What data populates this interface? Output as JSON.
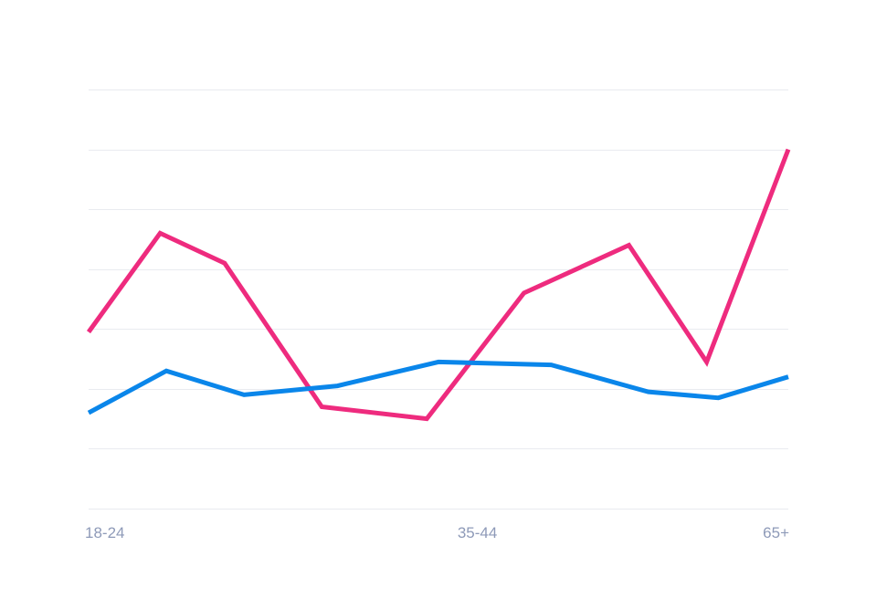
{
  "chart_data": {
    "type": "line",
    "x": [
      0,
      1,
      2,
      3,
      4,
      5,
      6,
      7,
      8,
      9
    ],
    "x_tick_labels": [
      {
        "x": 0,
        "label": "18-24"
      },
      {
        "x": 5,
        "label": "35-44"
      },
      {
        "x": 9,
        "label": "65+"
      }
    ],
    "ylim": [
      0,
      7
    ],
    "y_gridlines": [
      0,
      1,
      2,
      3,
      4,
      5,
      6,
      7
    ],
    "grid": true,
    "series": [
      {
        "color": "#ee2b7e",
        "x": [
          0,
          0.92,
          1.75,
          3.0,
          4.35,
          5.6,
          6.95,
          7.95,
          9.0
        ],
        "values": [
          2.95,
          4.6,
          4.1,
          1.7,
          1.5,
          3.6,
          4.4,
          2.45,
          6.0
        ]
      },
      {
        "color": "#0a86ea",
        "x": [
          0,
          1.0,
          2.0,
          3.2,
          4.5,
          5.95,
          7.2,
          8.1,
          9.0
        ],
        "values": [
          1.6,
          2.3,
          1.9,
          2.05,
          2.45,
          2.4,
          1.95,
          1.85,
          2.2
        ]
      }
    ]
  }
}
